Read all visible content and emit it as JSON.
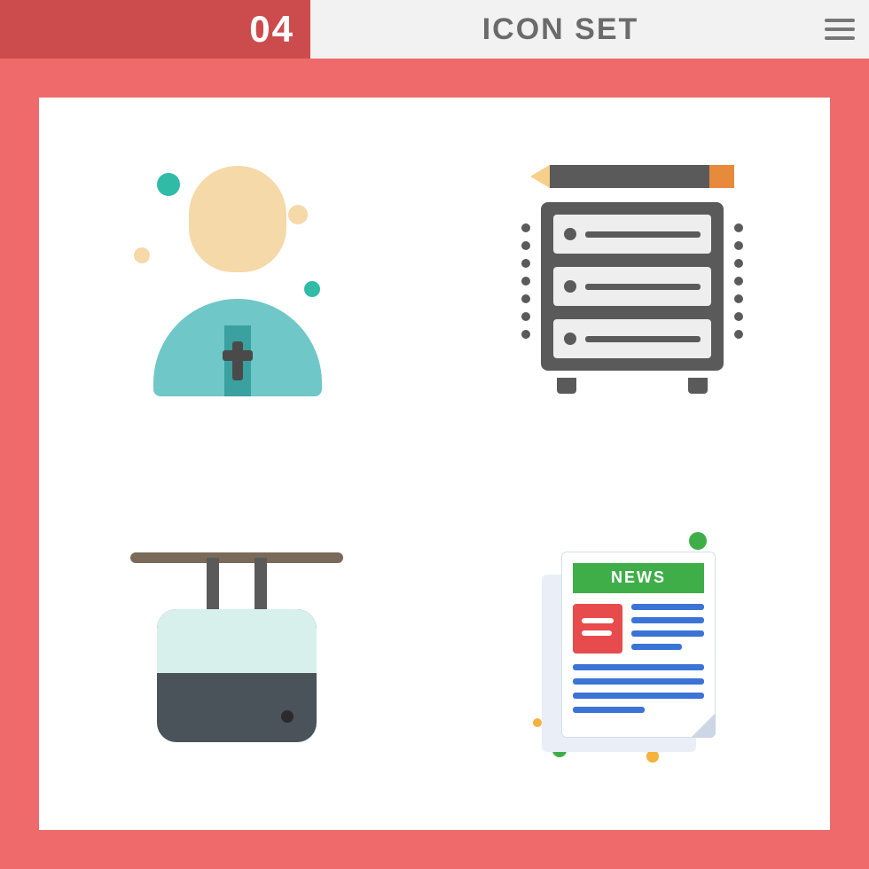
{
  "header": {
    "number": "04",
    "title": "ICON SET",
    "accent_color": "#cc4b4c",
    "bg_color": "#f2f2f2",
    "title_color": "#6b6b6b",
    "menu_color": "#777777"
  },
  "stage": {
    "bg_color": "#ef6a6a",
    "sheet_color": "#ffffff"
  },
  "icons": {
    "priest": {
      "name": "priest-icon",
      "skin_color": "#f6d9a9",
      "robe_color": "#6fc7c7",
      "stole_color": "#3aa0a0",
      "cross_color": "#4a4a4a",
      "accent_teal": "#2fbba6"
    },
    "server": {
      "name": "server-edit-icon",
      "rack_color": "#5a5a5a",
      "slot_color": "#eeeeee",
      "pencil_barrel": "#5a5a5a",
      "pencil_tip": "#f6d08a",
      "pencil_eraser": "#e78a3a",
      "slot_count": 3
    },
    "cablecar": {
      "name": "cable-car-icon",
      "cable_color": "#7a6a5a",
      "cab_color": "#4a525a",
      "window_color": "#d8f0ec"
    },
    "news": {
      "name": "newspaper-icon",
      "masthead_label": "NEWS",
      "masthead_color": "#3fae49",
      "thumb_color": "#e84b4b",
      "line_color": "#3b74d6",
      "dot_green": "#3fae49",
      "dot_orange": "#f4b23e"
    }
  },
  "watermark": ""
}
